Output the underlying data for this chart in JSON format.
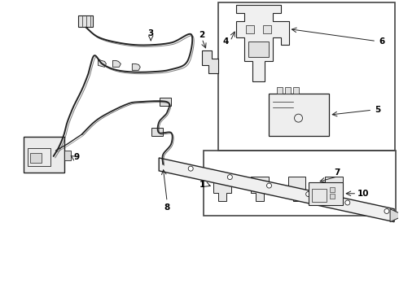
{
  "background_color": "#ffffff",
  "line_color": "#222222",
  "text_color": "#000000",
  "box_border_color": "#444444",
  "figsize": [
    4.9,
    3.6
  ],
  "dpi": 100
}
